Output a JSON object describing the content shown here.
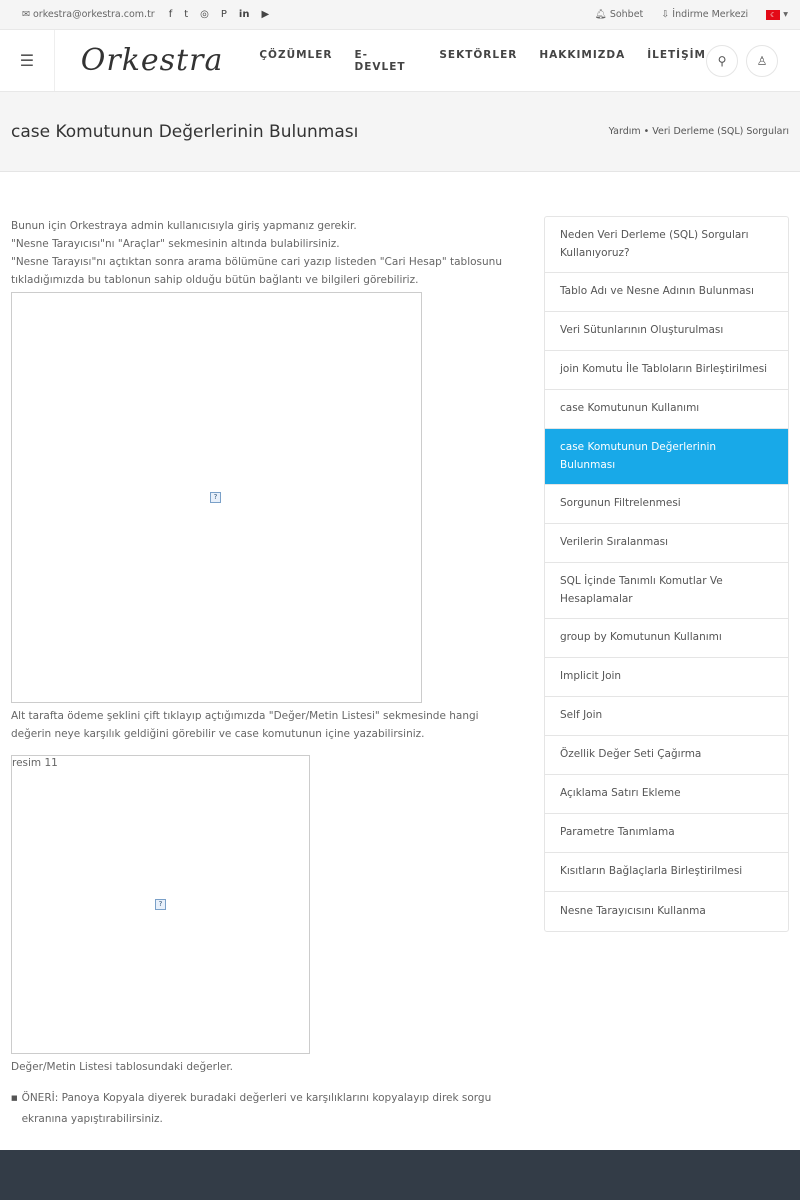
{
  "topbar": {
    "email": "orkestra@orkestra.com.tr",
    "social": [
      "facebook-icon",
      "twitter-icon",
      "instagram-icon",
      "pinterest-icon",
      "linkedin-icon",
      "youtube-icon"
    ],
    "chat": "Sohbet",
    "download": "İndirme Merkezi",
    "lang": "TR"
  },
  "nav": {
    "logo": "Orkestra",
    "menu": [
      "ÇÖZÜMLER",
      "E-DEVLET",
      "SEKTÖRLER",
      "HAKKIMIZDA",
      "İLETİŞİM"
    ]
  },
  "page": {
    "title": "case Komutunun Değerlerinin Bulunması",
    "breadcrumb": [
      "Yardım",
      "Veri Derleme (SQL) Sorguları"
    ]
  },
  "content": {
    "p1": [
      "Bunun için Orkestraya admin kullanıcısıyla giriş yapmanız gerekir.",
      "\"Nesne Tarayıcısı\"nı \"Araçlar\" sekmesinin altında bulabilirsiniz.",
      "\"Nesne Tarayısı\"nı açtıktan sonra arama bölümüne cari yazıp listeden \"Cari Hesap\" tablosunu tıkladığımızda bu tablonun sahip olduğu bütün bağlantı ve bilgileri görebiliriz."
    ],
    "p2": "Alt tarafta ödeme şeklini çift tıklayıp açtığımızda \"Değer/Metin Listesi\" sekmesinde hangi değerin neye karşılık geldiğini görebilir ve case komutunun içine yazabilirsiniz.",
    "img2_alt": "resim 11",
    "caption": "Değer/Metin Listesi tablosundaki değerler.",
    "tip": "ÖNERİ: Panoya Kopyala diyerek buradaki değerleri ve karşılıklarını kopyalayıp direk sorgu ekranına yapıştırabilirsiniz."
  },
  "sidebar": {
    "active_color": "#18a9e8",
    "items": [
      "Neden Veri Derleme (SQL) Sorguları Kullanıyoruz?",
      "Tablo Adı ve Nesne Adının Bulunması",
      "Veri Sütunlarının Oluşturulması",
      "join Komutu İle Tabloların Birleştirilmesi",
      "case Komutunun Kullanımı",
      "case Komutunun Değerlerinin Bulunması",
      "Sorgunun Filtrelenmesi",
      "Verilerin Sıralanması",
      "SQL İçinde Tanımlı Komutlar Ve Hesaplamalar",
      "group by Komutunun Kullanımı",
      "Implicit Join",
      "Self Join",
      "Özellik Değer Seti Çağırma",
      "Açıklama Satırı Ekleme",
      "Parametre Tanımlama",
      "Kısıtların Bağlaçlarla Birleştirilmesi",
      "Nesne Tarayıcısını Kullanma"
    ]
  }
}
